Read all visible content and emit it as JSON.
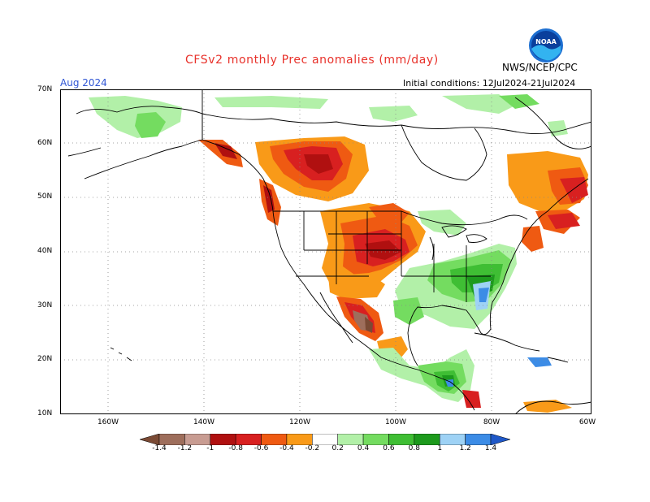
{
  "title": "CFSv2 monthly Prec anomalies (mm/day)",
  "agency": "NWS/NCEP/CPC",
  "month": "Aug 2024",
  "initial_conditions": "Initial conditions: 12Jul2024-21Jul2024",
  "lat_labels": [
    "70N",
    "60N",
    "50N",
    "40N",
    "30N",
    "20N",
    "10N"
  ],
  "lon_labels": [
    "160W",
    "140W",
    "120W",
    "100W",
    "80W",
    "60W"
  ],
  "colorbar": {
    "ticks": [
      "-1.4",
      "-1.2",
      "-1",
      "-0.8",
      "-0.6",
      "-0.4",
      "-0.2",
      "0.2",
      "0.4",
      "0.6",
      "0.8",
      "1",
      "1.2",
      "1.4"
    ],
    "colors": [
      "#7a4a34",
      "#9e6e5c",
      "#c89c92",
      "#b01010",
      "#d82020",
      "#ef5a12",
      "#f99a18",
      "#ffffff",
      "#b2f0a8",
      "#74dc60",
      "#3fbe34",
      "#1d9a1d",
      "#9ed2f5",
      "#3c8ce6",
      "#1f58c8"
    ]
  },
  "colors": {
    "dry_strong": "#d82020",
    "dry_weak": "#f99a18",
    "wet_weak": "#74dc60",
    "wet_strong": "#1d9a1d",
    "coast": "#000000",
    "grid": "#888888"
  }
}
